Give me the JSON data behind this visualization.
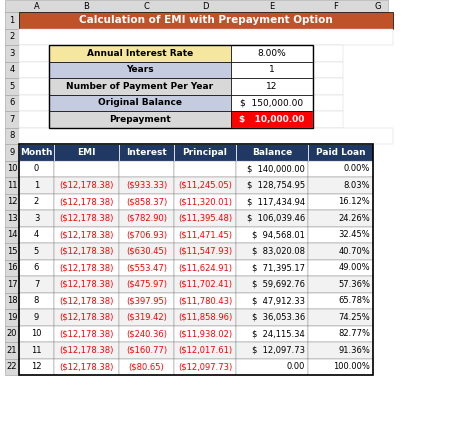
{
  "title": "Calculation of EMI with Prepayment Option",
  "title_bg": "#C0522A",
  "title_color": "#FFFFFF",
  "info_rows": [
    {
      "label": "Annual Interest Rate",
      "value": "8.00%",
      "label_bg": "#F5E6A0",
      "value_bg": "#FFFFFF"
    },
    {
      "label": "Years",
      "value": "1",
      "label_bg": "#C5CCE0",
      "value_bg": "#FFFFFF"
    },
    {
      "label": "Number of Payment Per Year",
      "value": "12",
      "label_bg": "#D8D8D8",
      "value_bg": "#FFFFFF"
    },
    {
      "label": "Original Balance",
      "value": "$  150,000.00",
      "label_bg": "#C5CCE0",
      "value_bg": "#FFFFFF"
    },
    {
      "label": "Prepayment",
      "value": "$   10,000.00",
      "label_bg": "#D8D8D8",
      "value_bg": "#FF0000"
    }
  ],
  "table_header": [
    "Month",
    "EMI",
    "Interest",
    "Principal",
    "Balance",
    "Paid Loan"
  ],
  "header_bg": "#1F3864",
  "header_color": "#FFFFFF",
  "table_rows": [
    [
      0,
      "",
      "",
      "",
      "$  140,000.00",
      "0.00%"
    ],
    [
      1,
      "($12,178.38)",
      "($933.33)",
      "($11,245.05)",
      "$  128,754.95",
      "8.03%"
    ],
    [
      2,
      "($12,178.38)",
      "($858.37)",
      "($11,320.01)",
      "$  117,434.94",
      "16.12%"
    ],
    [
      3,
      "($12,178.38)",
      "($782.90)",
      "($11,395.48)",
      "$  106,039.46",
      "24.26%"
    ],
    [
      4,
      "($12,178.38)",
      "($706.93)",
      "($11,471.45)",
      "$  94,568.01",
      "32.45%"
    ],
    [
      5,
      "($12,178.38)",
      "($630.45)",
      "($11,547.93)",
      "$  83,020.08",
      "40.70%"
    ],
    [
      6,
      "($12,178.38)",
      "($553.47)",
      "($11,624.91)",
      "$  71,395.17",
      "49.00%"
    ],
    [
      7,
      "($12,178.38)",
      "($475.97)",
      "($11,702.41)",
      "$  59,692.76",
      "57.36%"
    ],
    [
      8,
      "($12,178.38)",
      "($397.95)",
      "($11,780.43)",
      "$  47,912.33",
      "65.78%"
    ],
    [
      9,
      "($12,178.38)",
      "($319.42)",
      "($11,858.96)",
      "$  36,053.36",
      "74.25%"
    ],
    [
      10,
      "($12,178.38)",
      "($240.36)",
      "($11,938.02)",
      "$  24,115.34",
      "82.77%"
    ],
    [
      11,
      "($12,178.38)",
      "($160.77)",
      "($12,017.61)",
      "$  12,097.73",
      "91.36%"
    ],
    [
      12,
      "($12,178.38)",
      "($80.65)",
      "($12,097.73)",
      "0.00",
      "100.00%"
    ]
  ],
  "row_colors": [
    "#FFFFFF",
    "#F2F2F2"
  ],
  "red_text_color": "#FF0000",
  "black_text_color": "#000000",
  "col_bg": "#D9D9D9",
  "letter_border": "#A0A0A0"
}
